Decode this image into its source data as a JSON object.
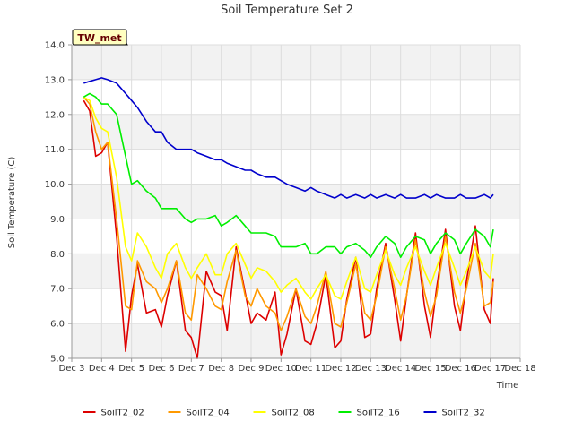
{
  "chart_data": {
    "type": "line",
    "title": "Soil Temperature Set 2",
    "xlabel": "Time",
    "ylabel": "Soil Temperature (C)",
    "badge": "TW_met",
    "x_ticks": [
      "Dec 3",
      "Dec 4",
      "Dec 5",
      "Dec 6",
      "Dec 7",
      "Dec 8",
      "Dec 9",
      "Dec 10",
      "Dec 11",
      "Dec 12",
      "Dec 13",
      "Dec 14",
      "Dec 15",
      "Dec 16",
      "Dec 17",
      "Dec 18"
    ],
    "y_ticks": [
      "5.0",
      "6.0",
      "7.0",
      "8.0",
      "9.0",
      "10.0",
      "11.0",
      "12.0",
      "13.0",
      "14.0"
    ],
    "xlim": [
      3,
      18
    ],
    "ylim": [
      5,
      14
    ],
    "grid": true,
    "legend_position": "bottom",
    "series": [
      {
        "name": "SoilT2_02",
        "color": "#dd0000",
        "x": [
          3.4,
          3.6,
          3.8,
          4.0,
          4.2,
          4.5,
          4.8,
          5.0,
          5.2,
          5.5,
          5.8,
          6.0,
          6.2,
          6.5,
          6.8,
          6.9,
          7.0,
          7.2,
          7.5,
          7.8,
          8.0,
          8.2,
          8.5,
          8.8,
          9.0,
          9.2,
          9.5,
          9.8,
          10.0,
          10.2,
          10.5,
          10.8,
          11.0,
          11.2,
          11.5,
          11.8,
          12.0,
          12.2,
          12.5,
          12.8,
          13.0,
          13.2,
          13.5,
          13.8,
          14.0,
          14.2,
          14.5,
          14.8,
          15.0,
          15.2,
          15.5,
          15.8,
          16.0,
          16.2,
          16.5,
          16.8,
          17.0,
          17.1
        ],
        "y": [
          12.4,
          12.1,
          10.8,
          10.9,
          11.2,
          8.5,
          5.2,
          6.8,
          7.7,
          6.3,
          6.4,
          5.9,
          6.8,
          7.8,
          5.8,
          5.7,
          5.6,
          5.0,
          7.5,
          6.9,
          6.8,
          5.8,
          8.2,
          6.9,
          6.0,
          6.3,
          6.1,
          6.9,
          5.1,
          5.7,
          7.0,
          5.5,
          5.4,
          6.0,
          7.4,
          5.3,
          5.5,
          6.7,
          7.9,
          5.6,
          5.7,
          7.0,
          8.3,
          6.7,
          5.5,
          6.8,
          8.6,
          6.5,
          5.6,
          7.0,
          8.7,
          6.5,
          5.8,
          7.2,
          8.8,
          6.4,
          6.0,
          7.3
        ]
      },
      {
        "name": "SoilT2_04",
        "color": "#ff9900",
        "x": [
          3.4,
          3.6,
          3.8,
          4.0,
          4.2,
          4.5,
          4.8,
          5.0,
          5.2,
          5.5,
          5.8,
          6.0,
          6.2,
          6.5,
          6.8,
          7.0,
          7.2,
          7.5,
          7.8,
          8.0,
          8.2,
          8.5,
          8.8,
          9.0,
          9.2,
          9.5,
          9.8,
          10.0,
          10.2,
          10.5,
          10.8,
          11.0,
          11.2,
          11.5,
          11.8,
          12.0,
          12.2,
          12.5,
          12.8,
          13.0,
          13.2,
          13.5,
          13.8,
          14.0,
          14.2,
          14.5,
          14.8,
          15.0,
          15.2,
          15.5,
          15.8,
          16.0,
          16.2,
          16.5,
          16.8,
          17.0,
          17.1
        ],
        "y": [
          12.5,
          12.3,
          11.5,
          11.0,
          11.2,
          9.0,
          6.5,
          6.4,
          7.8,
          7.2,
          7.0,
          6.6,
          7.0,
          7.8,
          6.3,
          6.1,
          7.4,
          7.0,
          6.5,
          6.4,
          7.2,
          8.1,
          6.8,
          6.5,
          7.0,
          6.5,
          6.3,
          5.8,
          6.2,
          7.0,
          6.2,
          6.0,
          6.5,
          7.5,
          6.0,
          5.9,
          6.6,
          7.7,
          6.3,
          6.1,
          6.8,
          8.2,
          7.0,
          6.1,
          6.8,
          8.4,
          6.9,
          6.2,
          6.8,
          8.5,
          6.9,
          6.3,
          7.0,
          8.3,
          6.5,
          6.6,
          7.2
        ]
      },
      {
        "name": "SoilT2_08",
        "color": "#ffff00",
        "x": [
          3.4,
          3.6,
          3.8,
          4.0,
          4.2,
          4.5,
          4.8,
          5.0,
          5.2,
          5.5,
          5.8,
          6.0,
          6.2,
          6.5,
          6.8,
          7.0,
          7.2,
          7.5,
          7.8,
          8.0,
          8.2,
          8.5,
          8.8,
          9.0,
          9.2,
          9.5,
          9.8,
          10.0,
          10.2,
          10.5,
          10.8,
          11.0,
          11.2,
          11.5,
          11.8,
          12.0,
          12.2,
          12.5,
          12.8,
          13.0,
          13.2,
          13.5,
          13.8,
          14.0,
          14.2,
          14.5,
          14.8,
          15.0,
          15.2,
          15.5,
          15.8,
          16.0,
          16.2,
          16.5,
          16.8,
          17.0,
          17.1
        ],
        "y": [
          12.5,
          12.4,
          11.9,
          11.6,
          11.5,
          10.2,
          8.2,
          7.8,
          8.6,
          8.2,
          7.6,
          7.3,
          8.0,
          8.3,
          7.6,
          7.3,
          7.6,
          8.0,
          7.4,
          7.4,
          8.0,
          8.3,
          7.7,
          7.3,
          7.6,
          7.5,
          7.2,
          6.9,
          7.1,
          7.3,
          6.9,
          6.7,
          7.0,
          7.4,
          6.8,
          6.7,
          7.2,
          7.9,
          7.0,
          6.9,
          7.4,
          8.1,
          7.4,
          7.1,
          7.6,
          8.2,
          7.5,
          7.1,
          7.6,
          8.3,
          7.6,
          7.1,
          7.5,
          8.2,
          7.5,
          7.3,
          8.0
        ]
      },
      {
        "name": "SoilT2_16",
        "color": "#00ee00",
        "x": [
          3.4,
          3.6,
          3.8,
          4.0,
          4.2,
          4.5,
          4.8,
          5.0,
          5.2,
          5.5,
          5.8,
          6.0,
          6.2,
          6.5,
          6.8,
          7.0,
          7.2,
          7.5,
          7.8,
          8.0,
          8.2,
          8.5,
          8.8,
          9.0,
          9.2,
          9.5,
          9.8,
          10.0,
          10.2,
          10.5,
          10.8,
          11.0,
          11.2,
          11.5,
          11.8,
          12.0,
          12.2,
          12.5,
          12.8,
          13.0,
          13.2,
          13.5,
          13.8,
          14.0,
          14.2,
          14.5,
          14.8,
          15.0,
          15.2,
          15.5,
          15.8,
          16.0,
          16.2,
          16.5,
          16.8,
          17.0,
          17.1
        ],
        "y": [
          12.5,
          12.6,
          12.5,
          12.3,
          12.3,
          12.0,
          10.8,
          10.0,
          10.1,
          9.8,
          9.6,
          9.3,
          9.3,
          9.3,
          9.0,
          8.9,
          9.0,
          9.0,
          9.1,
          8.8,
          8.9,
          9.1,
          8.8,
          8.6,
          8.6,
          8.6,
          8.5,
          8.2,
          8.2,
          8.2,
          8.3,
          8.0,
          8.0,
          8.2,
          8.2,
          8.0,
          8.2,
          8.3,
          8.1,
          7.9,
          8.2,
          8.5,
          8.3,
          7.9,
          8.2,
          8.5,
          8.4,
          8.0,
          8.3,
          8.6,
          8.4,
          8.0,
          8.3,
          8.7,
          8.5,
          8.2,
          8.7
        ]
      },
      {
        "name": "SoilT2_32",
        "color": "#0000cc",
        "x": [
          3.4,
          3.6,
          3.8,
          4.0,
          4.2,
          4.5,
          4.8,
          5.0,
          5.2,
          5.5,
          5.8,
          6.0,
          6.2,
          6.5,
          6.8,
          7.0,
          7.2,
          7.5,
          7.8,
          8.0,
          8.2,
          8.5,
          8.8,
          9.0,
          9.2,
          9.5,
          9.8,
          10.0,
          10.2,
          10.5,
          10.8,
          11.0,
          11.2,
          11.5,
          11.8,
          12.0,
          12.2,
          12.5,
          12.8,
          13.0,
          13.2,
          13.5,
          13.8,
          14.0,
          14.2,
          14.5,
          14.8,
          15.0,
          15.2,
          15.5,
          15.8,
          16.0,
          16.2,
          16.5,
          16.8,
          17.0,
          17.1
        ],
        "y": [
          12.9,
          12.95,
          13.0,
          13.05,
          13.0,
          12.9,
          12.6,
          12.4,
          12.2,
          11.8,
          11.5,
          11.5,
          11.2,
          11.0,
          11.0,
          11.0,
          10.9,
          10.8,
          10.7,
          10.7,
          10.6,
          10.5,
          10.4,
          10.4,
          10.3,
          10.2,
          10.2,
          10.1,
          10.0,
          9.9,
          9.8,
          9.9,
          9.8,
          9.7,
          9.6,
          9.7,
          9.6,
          9.7,
          9.6,
          9.7,
          9.6,
          9.7,
          9.6,
          9.7,
          9.6,
          9.6,
          9.7,
          9.6,
          9.7,
          9.6,
          9.6,
          9.7,
          9.6,
          9.6,
          9.7,
          9.6,
          9.7
        ]
      }
    ]
  }
}
